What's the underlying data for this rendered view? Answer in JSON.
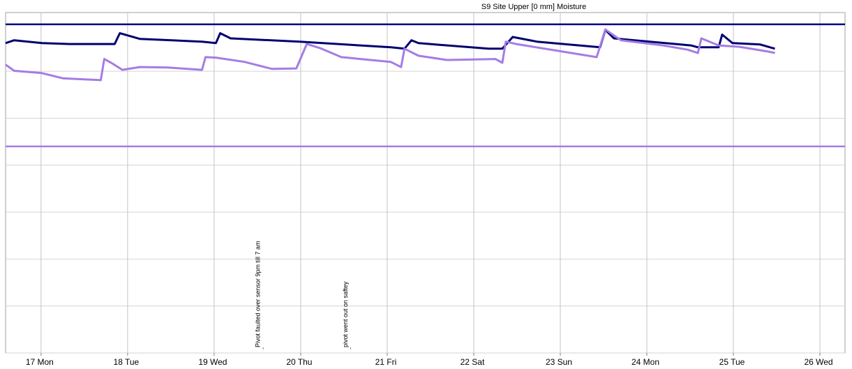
{
  "chart_data": {
    "type": "line",
    "title": "S9 Site Upper  [0 mm] Moisture",
    "xlim": [
      16.59,
      26.29
    ],
    "xticks": [
      {
        "value": 17,
        "label": "17 Mon"
      },
      {
        "value": 18,
        "label": "18 Tue"
      },
      {
        "value": 19,
        "label": "19 Wed"
      },
      {
        "value": 20,
        "label": "20 Thu"
      },
      {
        "value": 21,
        "label": "21 Fri"
      },
      {
        "value": 22,
        "label": "22 Sat"
      },
      {
        "value": 23,
        "label": "23 Sun"
      },
      {
        "value": 24,
        "label": "24 Mon"
      },
      {
        "value": 25,
        "label": "25 Tue"
      },
      {
        "value": 26,
        "label": "26 Wed"
      }
    ],
    "ylim": [
      0,
      7.25
    ],
    "yticks": [
      0,
      1,
      2,
      3,
      4,
      5,
      6,
      7
    ],
    "grid": true,
    "reference_lines": [
      {
        "value": 7,
        "color": "#000080"
      },
      {
        "value": 4.4,
        "color": "#a47ce6"
      }
    ],
    "series": [
      {
        "color": "#000070",
        "x": [
          16.59,
          16.69,
          17.01,
          17.33,
          17.85,
          17.91,
          18.14,
          18.86,
          19.02,
          19.07,
          19.19,
          19.99,
          21.04,
          21.2,
          21.28,
          21.36,
          22.17,
          22.33,
          22.45,
          22.73,
          23.46,
          23.52,
          23.62,
          24.51,
          24.59,
          24.83,
          24.87,
          24.99,
          25.31,
          25.48
        ],
        "values": [
          6.6,
          6.66,
          6.6,
          6.58,
          6.58,
          6.81,
          6.69,
          6.63,
          6.6,
          6.81,
          6.7,
          6.63,
          6.51,
          6.48,
          6.66,
          6.6,
          6.48,
          6.48,
          6.73,
          6.63,
          6.51,
          6.88,
          6.7,
          6.55,
          6.51,
          6.51,
          6.78,
          6.6,
          6.57,
          6.48
        ]
      },
      {
        "color": "#a47ce6",
        "x": [
          16.59,
          16.69,
          17.01,
          17.25,
          17.69,
          17.73,
          17.81,
          17.94,
          18.14,
          18.46,
          18.86,
          18.9,
          19.02,
          19.35,
          19.67,
          19.95,
          20.07,
          20.23,
          20.47,
          21.04,
          21.16,
          21.2,
          21.36,
          21.69,
          22.25,
          22.33,
          22.37,
          22.49,
          23.22,
          23.42,
          23.52,
          23.7,
          24.19,
          24.47,
          24.59,
          24.63,
          24.83,
          25.07,
          25.4,
          25.48
        ],
        "values": [
          6.14,
          6.01,
          5.96,
          5.85,
          5.81,
          6.26,
          6.18,
          6.03,
          6.09,
          6.08,
          6.03,
          6.3,
          6.29,
          6.2,
          6.05,
          6.06,
          6.58,
          6.49,
          6.3,
          6.2,
          6.09,
          6.48,
          6.33,
          6.24,
          6.26,
          6.18,
          6.63,
          6.58,
          6.36,
          6.3,
          6.89,
          6.66,
          6.55,
          6.46,
          6.39,
          6.7,
          6.55,
          6.52,
          6.42,
          6.39
        ]
      }
    ],
    "annotations": [
      {
        "text": "Pivot faulted over sensor 9pm till 7 am",
        "x": 19.51
      },
      {
        "text": "pivot went out on saftey",
        "x": 20.52
      }
    ]
  }
}
